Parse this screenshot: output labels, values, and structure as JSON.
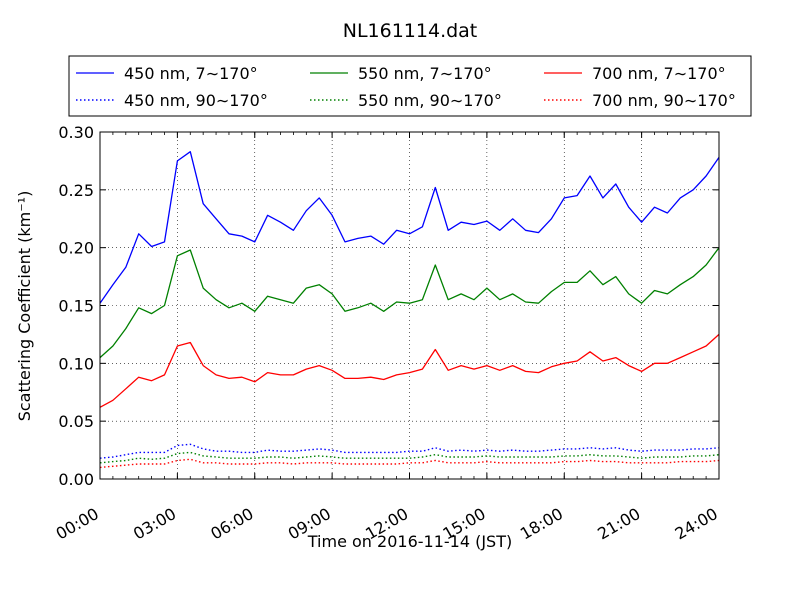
{
  "chart_data": {
    "type": "line",
    "title": "NL161114.dat",
    "xlabel": "Time on 2016-11-14 (JST)",
    "ylabel": "Scattering Coefficient (km⁻¹)",
    "xlim": [
      0,
      24
    ],
    "ylim": [
      0.0,
      0.3
    ],
    "x_ticks": [
      0,
      3,
      6,
      9,
      12,
      15,
      18,
      21,
      24
    ],
    "x_tick_labels": [
      "00:00",
      "03:00",
      "06:00",
      "09:00",
      "12:00",
      "15:00",
      "18:00",
      "21:00",
      "24:00"
    ],
    "y_ticks": [
      0.0,
      0.05,
      0.1,
      0.15,
      0.2,
      0.25,
      0.3
    ],
    "y_tick_labels": [
      "0.00",
      "0.05",
      "0.10",
      "0.15",
      "0.20",
      "0.25",
      "0.30"
    ],
    "grid": true,
    "legend_position": "top, above plot",
    "x": [
      0,
      0.5,
      1,
      1.5,
      2,
      2.5,
      3,
      3.5,
      4,
      4.5,
      5,
      5.5,
      6,
      6.5,
      7,
      7.5,
      8,
      8.5,
      9,
      9.5,
      10,
      10.5,
      11,
      11.5,
      12,
      12.5,
      13,
      13.5,
      14,
      14.5,
      15,
      15.5,
      16,
      16.5,
      17,
      17.5,
      18,
      18.5,
      19,
      19.5,
      20,
      20.5,
      21,
      21.5,
      22,
      22.5,
      23,
      23.5,
      24
    ],
    "series": [
      {
        "name": "450 nm, 7∼170°",
        "color": "#0000ff",
        "style": "solid",
        "values": [
          0.152,
          0.168,
          0.183,
          0.212,
          0.201,
          0.205,
          0.275,
          0.283,
          0.238,
          0.225,
          0.212,
          0.21,
          0.205,
          0.228,
          0.222,
          0.215,
          0.232,
          0.243,
          0.228,
          0.205,
          0.208,
          0.21,
          0.203,
          0.215,
          0.212,
          0.218,
          0.252,
          0.215,
          0.222,
          0.22,
          0.223,
          0.215,
          0.225,
          0.215,
          0.213,
          0.225,
          0.243,
          0.245,
          0.262,
          0.243,
          0.255,
          0.235,
          0.222,
          0.235,
          0.23,
          0.243,
          0.25,
          0.262,
          0.278
        ]
      },
      {
        "name": "450 nm, 90∼170°",
        "color": "#0000ff",
        "style": "dotted",
        "values": [
          0.018,
          0.019,
          0.021,
          0.023,
          0.023,
          0.023,
          0.029,
          0.03,
          0.026,
          0.024,
          0.024,
          0.023,
          0.023,
          0.025,
          0.024,
          0.024,
          0.025,
          0.026,
          0.025,
          0.023,
          0.023,
          0.023,
          0.023,
          0.023,
          0.024,
          0.024,
          0.027,
          0.024,
          0.025,
          0.024,
          0.025,
          0.024,
          0.025,
          0.024,
          0.024,
          0.025,
          0.026,
          0.026,
          0.027,
          0.026,
          0.027,
          0.025,
          0.024,
          0.025,
          0.025,
          0.025,
          0.026,
          0.026,
          0.027
        ]
      },
      {
        "name": "550 nm, 7∼170°",
        "color": "#008000",
        "style": "solid",
        "values": [
          0.105,
          0.115,
          0.13,
          0.148,
          0.143,
          0.15,
          0.193,
          0.198,
          0.165,
          0.155,
          0.148,
          0.152,
          0.145,
          0.158,
          0.155,
          0.152,
          0.165,
          0.168,
          0.16,
          0.145,
          0.148,
          0.152,
          0.145,
          0.153,
          0.152,
          0.155,
          0.185,
          0.155,
          0.16,
          0.155,
          0.165,
          0.155,
          0.16,
          0.153,
          0.152,
          0.162,
          0.17,
          0.17,
          0.18,
          0.168,
          0.175,
          0.16,
          0.152,
          0.163,
          0.16,
          0.168,
          0.175,
          0.185,
          0.2
        ]
      },
      {
        "name": "550 nm, 90∼170°",
        "color": "#008000",
        "style": "dotted",
        "values": [
          0.014,
          0.015,
          0.016,
          0.018,
          0.017,
          0.018,
          0.022,
          0.023,
          0.02,
          0.019,
          0.018,
          0.018,
          0.018,
          0.019,
          0.019,
          0.018,
          0.019,
          0.02,
          0.019,
          0.018,
          0.018,
          0.018,
          0.018,
          0.018,
          0.018,
          0.019,
          0.021,
          0.019,
          0.019,
          0.019,
          0.02,
          0.019,
          0.019,
          0.019,
          0.019,
          0.019,
          0.02,
          0.02,
          0.021,
          0.02,
          0.02,
          0.019,
          0.018,
          0.019,
          0.019,
          0.019,
          0.02,
          0.02,
          0.021
        ]
      },
      {
        "name": "700 nm, 7∼170°",
        "color": "#ff0000",
        "style": "solid",
        "values": [
          0.062,
          0.068,
          0.078,
          0.088,
          0.085,
          0.09,
          0.115,
          0.118,
          0.098,
          0.09,
          0.087,
          0.088,
          0.084,
          0.092,
          0.09,
          0.09,
          0.095,
          0.098,
          0.094,
          0.087,
          0.087,
          0.088,
          0.086,
          0.09,
          0.092,
          0.095,
          0.112,
          0.094,
          0.098,
          0.095,
          0.098,
          0.094,
          0.098,
          0.093,
          0.092,
          0.097,
          0.1,
          0.102,
          0.11,
          0.102,
          0.105,
          0.098,
          0.093,
          0.1,
          0.1,
          0.105,
          0.11,
          0.115,
          0.125
        ]
      },
      {
        "name": "700 nm, 90∼170°",
        "color": "#ff0000",
        "style": "dotted",
        "values": [
          0.01,
          0.011,
          0.012,
          0.013,
          0.013,
          0.013,
          0.016,
          0.017,
          0.014,
          0.014,
          0.013,
          0.013,
          0.013,
          0.014,
          0.014,
          0.013,
          0.014,
          0.014,
          0.014,
          0.013,
          0.013,
          0.013,
          0.013,
          0.013,
          0.014,
          0.014,
          0.016,
          0.014,
          0.014,
          0.014,
          0.015,
          0.014,
          0.014,
          0.014,
          0.014,
          0.014,
          0.015,
          0.015,
          0.016,
          0.015,
          0.015,
          0.014,
          0.014,
          0.014,
          0.014,
          0.015,
          0.015,
          0.015,
          0.016
        ]
      }
    ]
  }
}
